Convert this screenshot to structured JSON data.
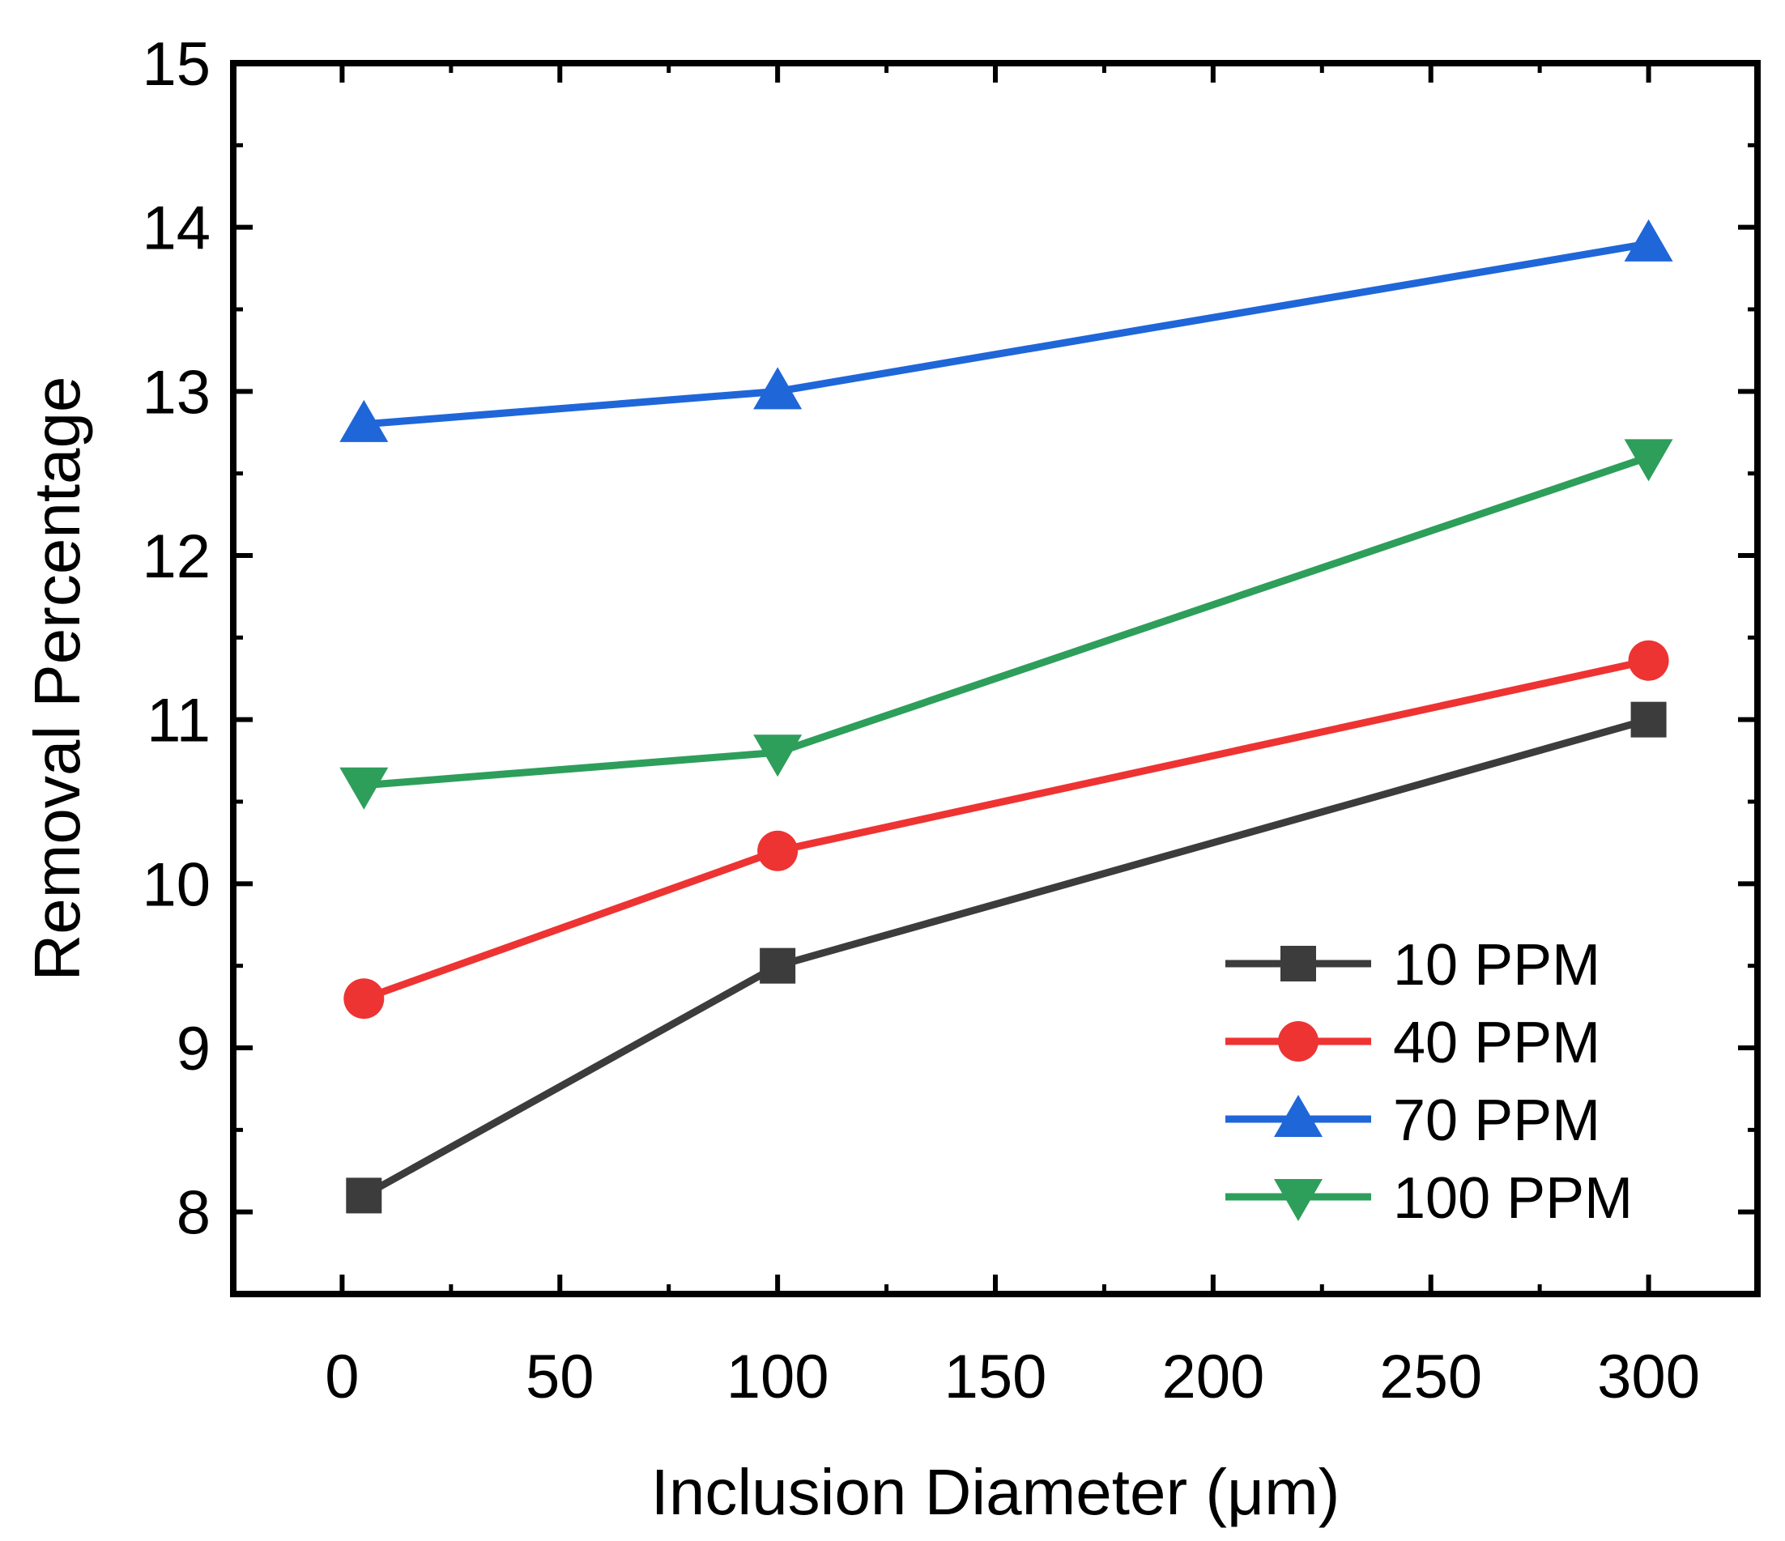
{
  "chart_data": {
    "type": "line",
    "xlabel": "Inclusion Diameter (μm)",
    "ylabel": "Removal Percentage",
    "xlim": [
      -25,
      325
    ],
    "ylim": [
      7.5,
      15
    ],
    "x_ticks": [
      0,
      50,
      100,
      150,
      200,
      250,
      300
    ],
    "y_ticks": [
      8,
      9,
      10,
      11,
      12,
      13,
      14,
      15
    ],
    "x": [
      5,
      100,
      300
    ],
    "series": [
      {
        "name": "10 PPM",
        "color": "#3c3c3c",
        "marker": "square",
        "values": [
          8.1,
          9.5,
          11.0
        ]
      },
      {
        "name": "40 PPM",
        "color": "#ee3333",
        "marker": "circle",
        "values": [
          9.3,
          10.2,
          11.36
        ]
      },
      {
        "name": "70 PPM",
        "color": "#1f66d9",
        "marker": "triangle-up",
        "values": [
          12.8,
          13.0,
          13.9
        ]
      },
      {
        "name": "100 PPM",
        "color": "#2e9e5b",
        "marker": "triangle-down",
        "values": [
          10.6,
          10.8,
          12.6
        ]
      }
    ],
    "legend_position": "bottom-right",
    "grid": false
  }
}
